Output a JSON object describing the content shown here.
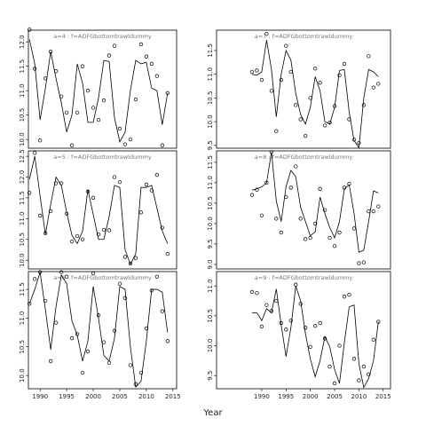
{
  "chart_data": [
    {
      "type": "line",
      "title": "a=4 : f=ADFGbottomtrawldummy",
      "x": [
        1988,
        1989,
        1990,
        1991,
        1992,
        1993,
        1994,
        1995,
        1996,
        1997,
        1998,
        1999,
        2000,
        2001,
        2002,
        2003,
        2004,
        2005,
        2006,
        2007,
        2008,
        2009,
        2010,
        2011,
        2012,
        2013,
        2014
      ],
      "points": [
        12.25,
        11.45,
        9.98,
        11.25,
        11.8,
        11.4,
        10.88,
        10.55,
        9.88,
        10.55,
        11.5,
        11.0,
        10.65,
        10.4,
        10.8,
        11.72,
        11.92,
        10.22,
        9.9,
        10.0,
        10.82,
        11.95,
        11.7,
        11.55,
        11.3,
        9.88,
        10.95
      ],
      "line": [
        12.05,
        11.55,
        10.4,
        11.05,
        11.8,
        11.25,
        10.75,
        10.15,
        10.5,
        11.55,
        11.15,
        10.35,
        10.35,
        10.85,
        11.62,
        11.6,
        10.45,
        9.95,
        10.15,
        11.0,
        11.62,
        11.55,
        11.58,
        11.05,
        11.0,
        10.3,
        10.95
      ],
      "color": "#000000",
      "xlim": [
        1987.8,
        2015.7
      ],
      "ylim": [
        9.82,
        12.24
      ],
      "yticks": [
        {
          "value": 10,
          "label": "10.0"
        },
        10.5,
        {
          "value": 11,
          "label": "11.0"
        },
        11.5,
        {
          "value": 12,
          "label": "12.0"
        }
      ]
    },
    {
      "type": "line",
      "title": "a=5 : f=ADFGbottomtrawldummy",
      "x": [
        1988,
        1989,
        1990,
        1991,
        1992,
        1993,
        1994,
        1995,
        1996,
        1997,
        1998,
        1999,
        2000,
        2001,
        2002,
        2003,
        2004,
        2005,
        2006,
        2007,
        2008,
        2009,
        2010,
        2011,
        2012,
        2013,
        2014
      ],
      "points": [
        11.62,
        12.58,
        11.07,
        10.65,
        11.18,
        11.85,
        11.85,
        11.12,
        10.45,
        10.58,
        10.5,
        11.65,
        11.5,
        10.62,
        10.73,
        10.72,
        12.0,
        11.88,
        10.08,
        9.92,
        10.05,
        11.15,
        11.82,
        11.68,
        12.05,
        10.78,
        10.15
      ],
      "line": [
        11.95,
        12.5,
        11.55,
        10.62,
        11.35,
        12.0,
        11.8,
        11.15,
        10.6,
        10.4,
        10.7,
        11.7,
        11.1,
        10.5,
        10.5,
        11.05,
        11.8,
        11.75,
        10.25,
        9.9,
        10.15,
        11.75,
        11.75,
        11.8,
        11.25,
        10.7,
        10.4
      ],
      "color": "#000000",
      "xlim": [
        1987.8,
        2015.7
      ],
      "ylim": [
        9.79,
        12.63
      ],
      "yticks": [
        {
          "value": 10,
          "label": "10.0"
        },
        10.5,
        {
          "value": 11,
          "label": "11.0"
        },
        11.5,
        {
          "value": 12,
          "label": "12.0"
        },
        12.5
      ]
    },
    {
      "type": "line",
      "title": "a=6 : f=ADFGbottomtrawldummy",
      "xlabel": "Year",
      "x": [
        1988,
        1989,
        1990,
        1991,
        1992,
        1993,
        1994,
        1995,
        1996,
        1997,
        1998,
        1999,
        2000,
        2001,
        2002,
        2003,
        2004,
        2005,
        2006,
        2007,
        2008,
        2009,
        2010,
        2011,
        2012,
        2013,
        2014
      ],
      "points": [
        11.25,
        11.68,
        11.8,
        11.3,
        10.25,
        10.92,
        11.8,
        11.72,
        10.65,
        10.72,
        10.05,
        10.42,
        11.78,
        11.05,
        10.58,
        10.22,
        10.78,
        11.6,
        11.35,
        10.18,
        9.85,
        10.05,
        10.82,
        11.48,
        11.72,
        11.12,
        10.6
      ],
      "line": [
        11.25,
        11.5,
        11.8,
        11.15,
        10.45,
        11.2,
        11.75,
        11.6,
        10.95,
        10.7,
        10.25,
        10.6,
        11.55,
        11.0,
        10.35,
        10.25,
        10.65,
        11.55,
        11.5,
        10.5,
        9.8,
        9.9,
        10.6,
        11.5,
        11.5,
        11.45,
        10.75
      ],
      "color": "#000000",
      "xlim": [
        1987.8,
        2015.7
      ],
      "ylim": [
        9.77,
        11.81
      ],
      "yticks": [
        {
          "value": 10,
          "label": "10.0"
        },
        10.5,
        {
          "value": 11,
          "label": "11.0"
        },
        11.5
      ],
      "xticks": [
        1990,
        1995,
        2000,
        2005,
        2010,
        2015
      ]
    },
    {
      "type": "line",
      "title": "a=7 : f=ADFGbottomtrawldummy",
      "x": [
        1988,
        1989,
        1990,
        1991,
        1992,
        1993,
        1994,
        1995,
        1996,
        1997,
        1998,
        1999,
        2000,
        2001,
        2002,
        2003,
        2004,
        2005,
        2006,
        2007,
        2008,
        2009,
        2010,
        2011,
        2012,
        2013,
        2014
      ],
      "points": [
        11.05,
        11.08,
        10.88,
        11.85,
        10.65,
        9.8,
        10.88,
        11.6,
        11.05,
        10.35,
        10.05,
        9.7,
        10.5,
        11.12,
        10.82,
        9.92,
        9.98,
        10.33,
        10.98,
        11.22,
        10.05,
        9.62,
        9.55,
        10.35,
        11.38,
        10.72,
        10.8
      ],
      "line": [
        11.0,
        10.98,
        11.05,
        11.72,
        11.1,
        10.1,
        11.0,
        11.5,
        11.3,
        10.6,
        10.15,
        9.95,
        10.3,
        10.95,
        10.65,
        10.0,
        9.95,
        10.3,
        11.08,
        11.1,
        10.2,
        9.6,
        9.45,
        10.5,
        11.1,
        11.05,
        10.95
      ],
      "color": "#000000",
      "xlim": [
        1980.7,
        2016.5
      ],
      "ylim": [
        9.44,
        11.93
      ],
      "yticks": [
        9.5,
        {
          "value": 10,
          "label": "10.0"
        },
        10.5,
        {
          "value": 11,
          "label": "11.0"
        },
        11.5
      ]
    },
    {
      "type": "line",
      "title": "a=8 : f=ADFGbottomtrawldummy",
      "x": [
        1988,
        1989,
        1990,
        1991,
        1992,
        1993,
        1994,
        1995,
        1996,
        1997,
        1998,
        1999,
        2000,
        2001,
        2002,
        2003,
        2004,
        2005,
        2006,
        2007,
        2008,
        2009,
        2010,
        2011,
        2012,
        2013,
        2014
      ],
      "points": [
        10.7,
        10.83,
        10.2,
        11.0,
        11.75,
        10.12,
        9.78,
        10.65,
        10.88,
        11.4,
        10.12,
        9.62,
        9.65,
        10.0,
        10.85,
        10.33,
        9.65,
        9.45,
        9.78,
        10.88,
        10.97,
        9.88,
        9.03,
        9.05,
        10.3,
        10.3,
        10.42
      ],
      "line": [
        10.82,
        10.85,
        10.9,
        11.0,
        11.75,
        10.55,
        10.05,
        10.9,
        11.3,
        11.15,
        10.4,
        10.05,
        9.7,
        9.8,
        10.65,
        10.25,
        9.9,
        9.65,
        10.05,
        10.85,
        10.95,
        10.25,
        9.3,
        9.35,
        10.05,
        10.8,
        10.75
      ],
      "color": "#000000",
      "xlim": [
        1980.7,
        2016.5
      ],
      "ylim": [
        8.89,
        11.78
      ],
      "yticks": [
        {
          "value": 9,
          "label": "9.0"
        },
        9.5,
        {
          "value": 10,
          "label": "10.0"
        },
        10.5,
        {
          "value": 11,
          "label": "11.0"
        },
        11.5
      ]
    },
    {
      "type": "line",
      "title": "a=9 : f=ADFGbottomtrawldummy",
      "x": [
        1988,
        1989,
        1990,
        1991,
        1992,
        1993,
        1994,
        1995,
        1996,
        1997,
        1998,
        1999,
        2000,
        2001,
        2002,
        2003,
        2004,
        2005,
        2006,
        2007,
        2008,
        2009,
        2010,
        2011,
        2012,
        2013,
        2014
      ],
      "points": [
        10.9,
        10.88,
        10.32,
        10.68,
        10.58,
        10.75,
        10.38,
        10.27,
        10.42,
        11.02,
        10.7,
        10.3,
        9.98,
        10.33,
        10.38,
        10.12,
        9.65,
        9.37,
        10.0,
        10.82,
        10.85,
        9.78,
        9.42,
        9.65,
        9.52,
        10.1,
        10.4
      ],
      "line": [
        10.55,
        10.55,
        10.42,
        10.62,
        10.55,
        10.95,
        10.35,
        9.82,
        10.3,
        11.0,
        10.75,
        10.2,
        9.78,
        9.48,
        9.75,
        10.15,
        9.98,
        9.6,
        9.37,
        10.05,
        10.65,
        10.68,
        9.7,
        9.3,
        9.45,
        9.75,
        10.4
      ],
      "color": "#000000",
      "xlim": [
        1980.7,
        2016.5
      ],
      "ylim": [
        9.28,
        11.24
      ],
      "yticks": [
        9.5,
        {
          "value": 10,
          "label": "10.0"
        },
        10.5,
        {
          "value": 11,
          "label": "11.0"
        }
      ],
      "xticks": [
        1990,
        1995,
        2000,
        2005,
        2010,
        2015
      ]
    }
  ]
}
